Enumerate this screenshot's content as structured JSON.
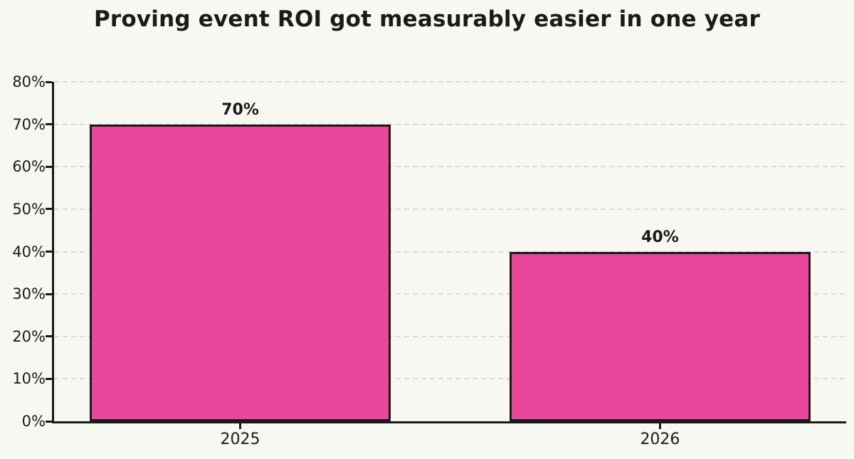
{
  "chart_data": {
    "type": "bar",
    "title": "Proving event ROI got measurably easier in one year",
    "categories": [
      "2025",
      "2026"
    ],
    "values": [
      70,
      40
    ],
    "value_labels": [
      "70%",
      "40%"
    ],
    "xlabel": "",
    "ylabel": "",
    "ylim": [
      0,
      80
    ],
    "yticks": [
      0,
      10,
      20,
      30,
      40,
      50,
      60,
      70,
      80
    ],
    "ytick_labels": [
      "0%",
      "10%",
      "20%",
      "30%",
      "40%",
      "50%",
      "60%",
      "70%",
      "80%"
    ],
    "grid": "horizontal-dashed",
    "legend": "none",
    "colors": {
      "bar_fill": "#E8479B",
      "bar_border": "#1A1A1A",
      "axis": "#1A1A1A",
      "grid": "#DBDBD5",
      "text": "#1A1A1A",
      "background": "#F8F8F2"
    }
  }
}
